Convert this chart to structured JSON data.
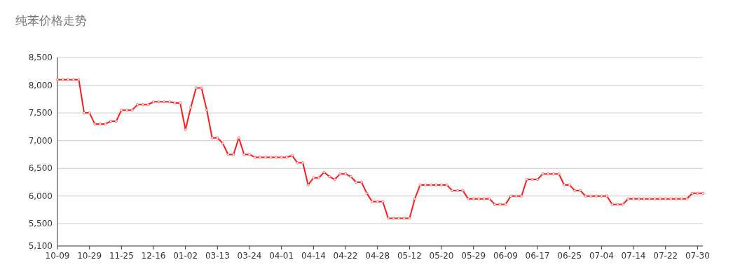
{
  "chart_data": {
    "type": "line",
    "title": "纯苯价格走势",
    "categories": [
      "10-09",
      null,
      null,
      null,
      null,
      null,
      "10-29",
      null,
      null,
      null,
      null,
      null,
      "11-25",
      null,
      null,
      null,
      null,
      null,
      "12-16",
      null,
      null,
      null,
      null,
      null,
      "01-02",
      null,
      null,
      null,
      null,
      null,
      "03-13",
      null,
      null,
      null,
      null,
      null,
      "03-24",
      null,
      null,
      null,
      null,
      null,
      "04-01",
      null,
      null,
      null,
      null,
      null,
      "04-14",
      null,
      null,
      null,
      null,
      null,
      "04-22",
      null,
      null,
      null,
      null,
      null,
      "04-28",
      null,
      null,
      null,
      null,
      null,
      "05-12",
      null,
      null,
      null,
      null,
      null,
      "05-20",
      null,
      null,
      null,
      null,
      null,
      "05-29",
      null,
      null,
      null,
      null,
      null,
      "06-09",
      null,
      null,
      null,
      null,
      null,
      "06-17",
      null,
      null,
      null,
      null,
      null,
      "06-25",
      null,
      null,
      null,
      null,
      null,
      "07-04",
      null,
      null,
      null,
      null,
      null,
      "07-14",
      null,
      null,
      null,
      null,
      null,
      "07-22",
      null,
      null,
      null,
      null,
      null,
      "07-30",
      null
    ],
    "series": [
      {
        "color": "#ff1a1a",
        "values": [
          8100,
          8100,
          8100,
          8100,
          8100,
          7500,
          7500,
          7300,
          7300,
          7300,
          7350,
          7350,
          7550,
          7550,
          7550,
          7650,
          7650,
          7650,
          7700,
          7700,
          7700,
          7700,
          7680,
          7680,
          7200,
          7600,
          7950,
          7950,
          7550,
          7050,
          7050,
          6950,
          6750,
          6750,
          7050,
          6750,
          6750,
          6700,
          6700,
          6700,
          6700,
          6700,
          6700,
          6700,
          6730,
          6600,
          6600,
          6200,
          6330,
          6330,
          6430,
          6350,
          6300,
          6400,
          6400,
          6350,
          6250,
          6250,
          6050,
          5900,
          5900,
          5900,
          5600,
          5600,
          5600,
          5600,
          5600,
          5950,
          6200,
          6200,
          6200,
          6200,
          6200,
          6200,
          6100,
          6100,
          6100,
          5950,
          5950,
          5950,
          5950,
          5950,
          5850,
          5850,
          5850,
          6000,
          6000,
          6000,
          6300,
          6300,
          6300,
          6400,
          6400,
          6400,
          6400,
          6200,
          6200,
          6100,
          6100,
          6000,
          6000,
          6000,
          6000,
          6000,
          5850,
          5850,
          5850,
          5950,
          5950,
          5950,
          5950,
          5950,
          5950,
          5950,
          5950,
          5950,
          5950,
          5950,
          5950,
          6050,
          6050,
          6050
        ]
      }
    ],
    "ylim": [
      5100,
      8500
    ],
    "yticks": [
      {
        "value": 5100,
        "label": "5,100"
      },
      {
        "value": 5500,
        "label": "5,500"
      },
      {
        "value": 6000,
        "label": "6,000"
      },
      {
        "value": 6500,
        "label": "6,500"
      },
      {
        "value": 7000,
        "label": "7,000"
      },
      {
        "value": 7500,
        "label": "7,500"
      },
      {
        "value": 8000,
        "label": "8,000"
      },
      {
        "value": 8500,
        "label": "8,500"
      }
    ],
    "grid": "y",
    "marker": "circle"
  }
}
